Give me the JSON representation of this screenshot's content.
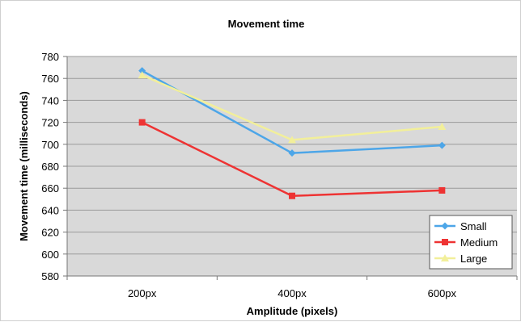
{
  "chart_data": {
    "type": "line",
    "title": "Movement time",
    "xlabel": "Amplitude (pixels)",
    "ylabel": "Movement time (milliseconds)",
    "categories": [
      "200px",
      "400px",
      "600px"
    ],
    "ylim": [
      580,
      780
    ],
    "yticks": [
      580,
      600,
      620,
      640,
      660,
      680,
      700,
      720,
      740,
      760,
      780
    ],
    "grid": true,
    "legend_position": "bottom-right",
    "plot_background": "#d9d9d9",
    "series": [
      {
        "name": "Small",
        "color": "#4da6e8",
        "marker": "diamond",
        "values": [
          767,
          692,
          699
        ]
      },
      {
        "name": "Medium",
        "color": "#ee3333",
        "marker": "square",
        "values": [
          720,
          653,
          658
        ]
      },
      {
        "name": "Large",
        "color": "#f2ef9a",
        "marker": "triangle",
        "values": [
          763,
          704,
          716
        ]
      }
    ]
  }
}
